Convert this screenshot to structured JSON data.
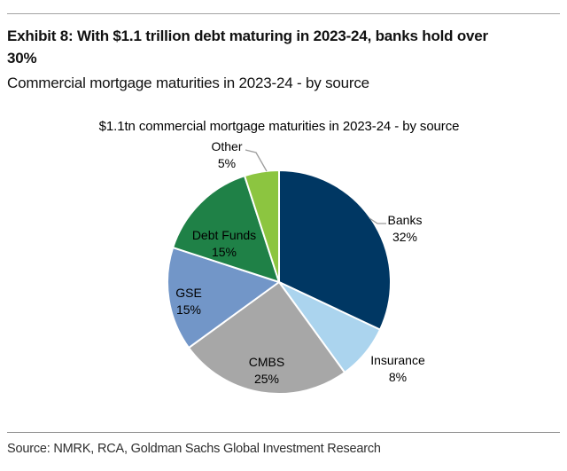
{
  "header": {
    "title": "Exhibit 8: With $1.1 trillion debt maturing in 2023-24, banks hold over 30%",
    "subtitle": "Commercial mortgage maturities in 2023-24 - by source"
  },
  "chart_data": {
    "type": "pie",
    "title": "$1.1tn commercial mortgage maturities in 2023-24 - by source",
    "start_angle_deg": 0,
    "direction": "clockwise",
    "total": 100,
    "slices": [
      {
        "label": "Banks",
        "value": 32,
        "value_label": "32%",
        "color": "#003763"
      },
      {
        "label": "Insurance",
        "value": 8,
        "value_label": "8%",
        "color": "#abd4ee"
      },
      {
        "label": "CMBS",
        "value": 25,
        "value_label": "25%",
        "color": "#a7a7a7"
      },
      {
        "label": "GSE",
        "value": 15,
        "value_label": "15%",
        "color": "#7296c8"
      },
      {
        "label": "Debt Funds",
        "value": 15,
        "value_label": "15%",
        "color": "#1f8147"
      },
      {
        "label": "Other",
        "value": 5,
        "value_label": "5%",
        "color": "#8cc540"
      }
    ]
  },
  "footer": {
    "source": "Source: NMRK, RCA, Goldman Sachs Global Investment Research"
  }
}
